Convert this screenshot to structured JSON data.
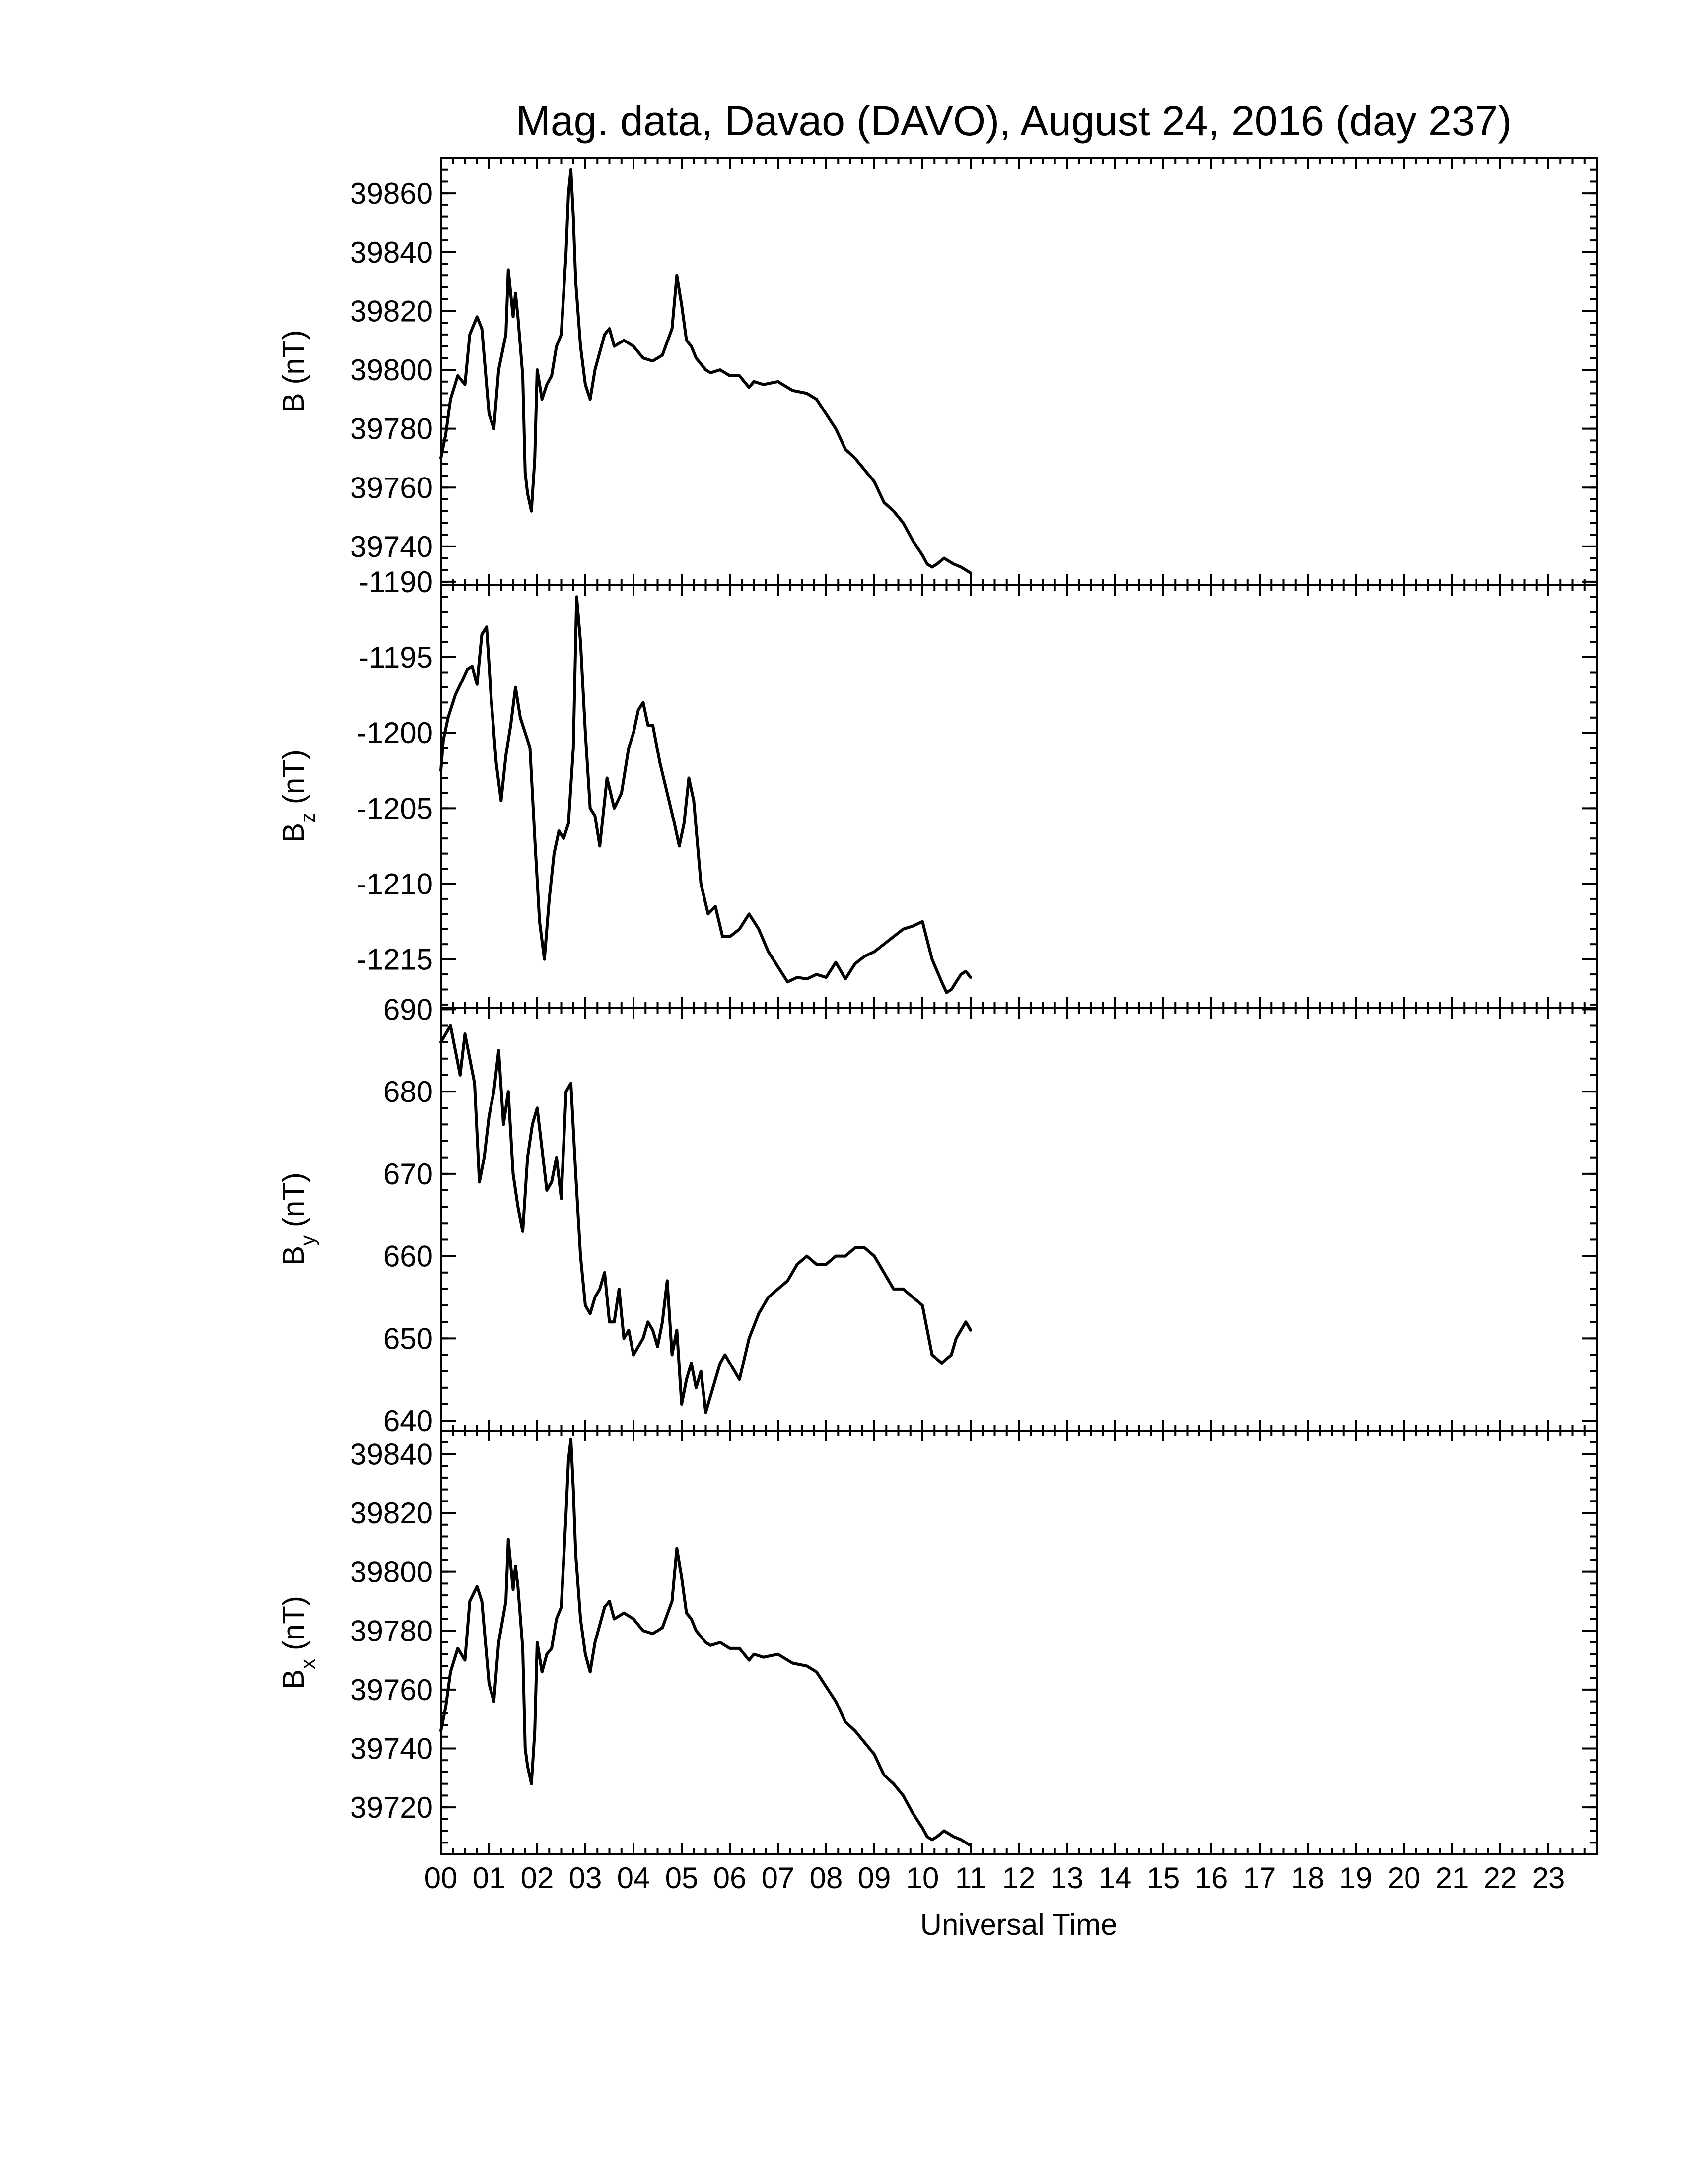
{
  "chart_data": {
    "type": "line",
    "title": "Mag. data, Davao (DAVO), August 24, 2016 (day 237)",
    "xlabel": "Universal Time",
    "x_unit": "hours UT",
    "xlim": [
      0,
      24
    ],
    "x_tick_labels": [
      "00",
      "01",
      "02",
      "03",
      "04",
      "05",
      "06",
      "07",
      "08",
      "09",
      "10",
      "11",
      "12",
      "13",
      "14",
      "15",
      "16",
      "17",
      "18",
      "19",
      "20",
      "21",
      "22",
      "23"
    ],
    "panels": [
      {
        "id": "B",
        "ylabel": "B (nT)",
        "ylabel_main": "B",
        "ylabel_sub": "",
        "ylabel_unit": " (nT)",
        "ylim": [
          39727,
          39872
        ],
        "yticks": [
          39740,
          39760,
          39780,
          39800,
          39820,
          39840,
          39860
        ],
        "ytick_labels": [
          "39740",
          "39760",
          "39780",
          "39800",
          "39820",
          "39840",
          "39860"
        ],
        "series": {
          "x": [
            0.0,
            0.1,
            0.2,
            0.35,
            0.5,
            0.6,
            0.75,
            0.85,
            1.0,
            1.1,
            1.2,
            1.35,
            1.4,
            1.5,
            1.55,
            1.6,
            1.7,
            1.75,
            1.8,
            1.88,
            1.95,
            2.0,
            2.1,
            2.2,
            2.3,
            2.4,
            2.5,
            2.6,
            2.65,
            2.7,
            2.75,
            2.8,
            2.9,
            3.0,
            3.1,
            3.2,
            3.3,
            3.4,
            3.5,
            3.6,
            3.8,
            4.0,
            4.2,
            4.4,
            4.6,
            4.8,
            4.9,
            5.0,
            5.1,
            5.2,
            5.3,
            5.4,
            5.5,
            5.6,
            5.8,
            6.0,
            6.2,
            6.4,
            6.5,
            6.7,
            7.0,
            7.3,
            7.6,
            7.8,
            8.0,
            8.2,
            8.4,
            8.6,
            8.8,
            9.0,
            9.2,
            9.4,
            9.6,
            9.8,
            10.0,
            10.1,
            10.2,
            10.3,
            10.45,
            10.55,
            10.65,
            10.8,
            10.9,
            11.0
          ],
          "y": [
            39770,
            39778,
            39790,
            39798,
            39795,
            39812,
            39818,
            39814,
            39785,
            39780,
            39800,
            39812,
            39834,
            39818,
            39826,
            39818,
            39798,
            39765,
            39758,
            39752,
            39770,
            39800,
            39790,
            39795,
            39798,
            39808,
            39812,
            39840,
            39860,
            39868,
            39852,
            39830,
            39808,
            39795,
            39790,
            39800,
            39806,
            39812,
            39814,
            39808,
            39810,
            39808,
            39804,
            39803,
            39805,
            39814,
            39832,
            39822,
            39810,
            39808,
            39804,
            39802,
            39800,
            39799,
            39800,
            39798,
            39798,
            39794,
            39796,
            39795,
            39796,
            39793,
            39792,
            39790,
            39785,
            39780,
            39773,
            39770,
            39766,
            39762,
            39755,
            39752,
            39748,
            39742,
            39737,
            39734,
            39733,
            39734,
            39736,
            39735,
            39734,
            39733,
            39732,
            39731
          ]
        }
      },
      {
        "id": "Bz",
        "ylabel": "Bz (nT)",
        "ylabel_main": "B",
        "ylabel_sub": "z",
        "ylabel_unit": " (nT)",
        "ylim": [
          -1218.2,
          -1190.2
        ],
        "yticks": [
          -1215,
          -1210,
          -1205,
          -1200,
          -1195,
          -1190
        ],
        "ytick_labels": [
          "-1215",
          "-1210",
          "-1205",
          "-1200",
          "-1195",
          "-1190"
        ],
        "series": {
          "x": [
            0.0,
            0.05,
            0.15,
            0.3,
            0.45,
            0.55,
            0.65,
            0.75,
            0.85,
            0.95,
            1.05,
            1.15,
            1.25,
            1.35,
            1.45,
            1.55,
            1.65,
            1.75,
            1.85,
            1.95,
            2.05,
            2.15,
            2.25,
            2.35,
            2.45,
            2.55,
            2.65,
            2.75,
            2.82,
            2.9,
            3.0,
            3.1,
            3.2,
            3.3,
            3.45,
            3.6,
            3.75,
            3.9,
            4.0,
            4.1,
            4.2,
            4.3,
            4.4,
            4.55,
            4.7,
            4.85,
            4.95,
            5.05,
            5.15,
            5.25,
            5.4,
            5.55,
            5.7,
            5.85,
            6.0,
            6.2,
            6.4,
            6.6,
            6.8,
            7.0,
            7.2,
            7.4,
            7.6,
            7.8,
            8.0,
            8.2,
            8.4,
            8.6,
            8.8,
            9.0,
            9.2,
            9.4,
            9.6,
            9.8,
            10.0,
            10.2,
            10.4,
            10.5,
            10.6,
            10.7,
            10.8,
            10.9,
            11.0
          ],
          "y": [
            -1202.5,
            -1200.5,
            -1199,
            -1197.5,
            -1196.5,
            -1195.8,
            -1195.6,
            -1196.8,
            -1193.5,
            -1193,
            -1198,
            -1202,
            -1204.5,
            -1201.5,
            -1199.5,
            -1197,
            -1199,
            -1200,
            -1201,
            -1207,
            -1212.5,
            -1215,
            -1211,
            -1208,
            -1206.5,
            -1207,
            -1206,
            -1201,
            -1191,
            -1194,
            -1200,
            -1205,
            -1205.5,
            -1207.5,
            -1203,
            -1205,
            -1204,
            -1201,
            -1200,
            -1198.5,
            -1198,
            -1199.5,
            -1199.5,
            -1202,
            -1204,
            -1206,
            -1207.5,
            -1206,
            -1203,
            -1204.5,
            -1210,
            -1212,
            -1211.5,
            -1213.5,
            -1213.5,
            -1213,
            -1212,
            -1213,
            -1214.5,
            -1215.5,
            -1216.5,
            -1216.2,
            -1216.3,
            -1216,
            -1216.2,
            -1215.2,
            -1216.3,
            -1215.3,
            -1214.8,
            -1214.5,
            -1214,
            -1213.5,
            -1213,
            -1212.8,
            -1212.5,
            -1215,
            -1216.5,
            -1217.2,
            -1217,
            -1216.5,
            -1216,
            -1215.8,
            -1216.2
          ]
        }
      },
      {
        "id": "By",
        "ylabel": "By (nT)",
        "ylabel_main": "B",
        "ylabel_sub": "y",
        "ylabel_unit": " (nT)",
        "ylim": [
          638.8,
          690.2
        ],
        "yticks": [
          640,
          650,
          660,
          670,
          680,
          690
        ],
        "ytick_labels": [
          "640",
          "650",
          "660",
          "670",
          "680",
          "690"
        ],
        "series": {
          "x": [
            0.0,
            0.1,
            0.2,
            0.3,
            0.4,
            0.5,
            0.6,
            0.7,
            0.8,
            0.9,
            1.0,
            1.1,
            1.2,
            1.3,
            1.4,
            1.5,
            1.6,
            1.7,
            1.8,
            1.9,
            2.0,
            2.1,
            2.2,
            2.3,
            2.4,
            2.5,
            2.6,
            2.7,
            2.8,
            2.9,
            3.0,
            3.1,
            3.2,
            3.3,
            3.4,
            3.5,
            3.6,
            3.7,
            3.8,
            3.9,
            4.0,
            4.1,
            4.2,
            4.3,
            4.4,
            4.5,
            4.6,
            4.7,
            4.8,
            4.9,
            5.0,
            5.1,
            5.2,
            5.3,
            5.4,
            5.5,
            5.6,
            5.7,
            5.8,
            5.9,
            6.0,
            6.2,
            6.4,
            6.6,
            6.8,
            7.0,
            7.2,
            7.4,
            7.6,
            7.8,
            8.0,
            8.2,
            8.4,
            8.6,
            8.8,
            9.0,
            9.2,
            9.4,
            9.6,
            9.8,
            10.0,
            10.2,
            10.4,
            10.6,
            10.7,
            10.8,
            10.9,
            11.0
          ],
          "y": [
            686,
            687,
            688,
            685,
            682,
            687,
            684,
            681,
            669,
            672,
            677,
            680,
            685,
            676,
            680,
            670,
            666,
            663,
            672,
            676,
            678,
            673,
            668,
            669,
            672,
            667,
            680,
            681,
            670,
            660,
            654,
            653,
            655,
            656,
            658,
            652,
            652,
            656,
            650,
            651,
            648,
            649,
            650,
            652,
            651,
            649,
            652,
            657,
            648,
            651,
            642,
            645,
            647,
            644,
            646,
            641,
            643,
            645,
            647,
            648,
            647,
            645,
            650,
            653,
            655,
            656,
            657,
            659,
            660,
            659,
            659,
            660,
            660,
            661,
            661,
            660,
            658,
            656,
            656,
            655,
            654,
            648,
            647,
            648,
            650,
            651,
            652,
            651
          ]
        }
      },
      {
        "id": "Bx",
        "ylabel": "Bx (nT)",
        "ylabel_main": "B",
        "ylabel_sub": "x",
        "ylabel_unit": " (nT)",
        "ylim": [
          39704,
          39848
        ],
        "yticks": [
          39720,
          39740,
          39760,
          39780,
          39800,
          39820,
          39840
        ],
        "ytick_labels": [
          "39720",
          "39740",
          "39760",
          "39780",
          "39800",
          "39820",
          "39840"
        ],
        "series": {
          "x": [
            0.0,
            0.1,
            0.2,
            0.35,
            0.5,
            0.6,
            0.75,
            0.85,
            1.0,
            1.1,
            1.2,
            1.35,
            1.4,
            1.5,
            1.55,
            1.6,
            1.7,
            1.75,
            1.8,
            1.88,
            1.95,
            2.0,
            2.1,
            2.2,
            2.3,
            2.4,
            2.5,
            2.6,
            2.65,
            2.7,
            2.75,
            2.8,
            2.9,
            3.0,
            3.1,
            3.2,
            3.3,
            3.4,
            3.5,
            3.6,
            3.8,
            4.0,
            4.2,
            4.4,
            4.6,
            4.8,
            4.9,
            5.0,
            5.1,
            5.2,
            5.3,
            5.4,
            5.5,
            5.6,
            5.8,
            6.0,
            6.2,
            6.4,
            6.5,
            6.7,
            7.0,
            7.3,
            7.6,
            7.8,
            8.0,
            8.2,
            8.4,
            8.6,
            8.8,
            9.0,
            9.2,
            9.4,
            9.6,
            9.8,
            10.0,
            10.1,
            10.2,
            10.3,
            10.45,
            10.55,
            10.65,
            10.8,
            10.9,
            11.0
          ],
          "y": [
            39746,
            39754,
            39766,
            39774,
            39770,
            39790,
            39795,
            39790,
            39762,
            39756,
            39776,
            39790,
            39811,
            39794,
            39802,
            39795,
            39774,
            39740,
            39734,
            39728,
            39746,
            39776,
            39766,
            39772,
            39774,
            39784,
            39788,
            39820,
            39838,
            39845,
            39828,
            39806,
            39784,
            39772,
            39766,
            39776,
            39782,
            39788,
            39790,
            39784,
            39786,
            39784,
            39780,
            39779,
            39781,
            39790,
            39808,
            39798,
            39786,
            39784,
            39780,
            39778,
            39776,
            39775,
            39776,
            39774,
            39774,
            39770,
            39772,
            39771,
            39772,
            39769,
            39768,
            39766,
            39761,
            39756,
            39749,
            39746,
            39742,
            39738,
            39731,
            39728,
            39724,
            39718,
            39713,
            39710,
            39709,
            39710,
            39712,
            39711,
            39710,
            39709,
            39708,
            39707
          ]
        }
      }
    ]
  }
}
